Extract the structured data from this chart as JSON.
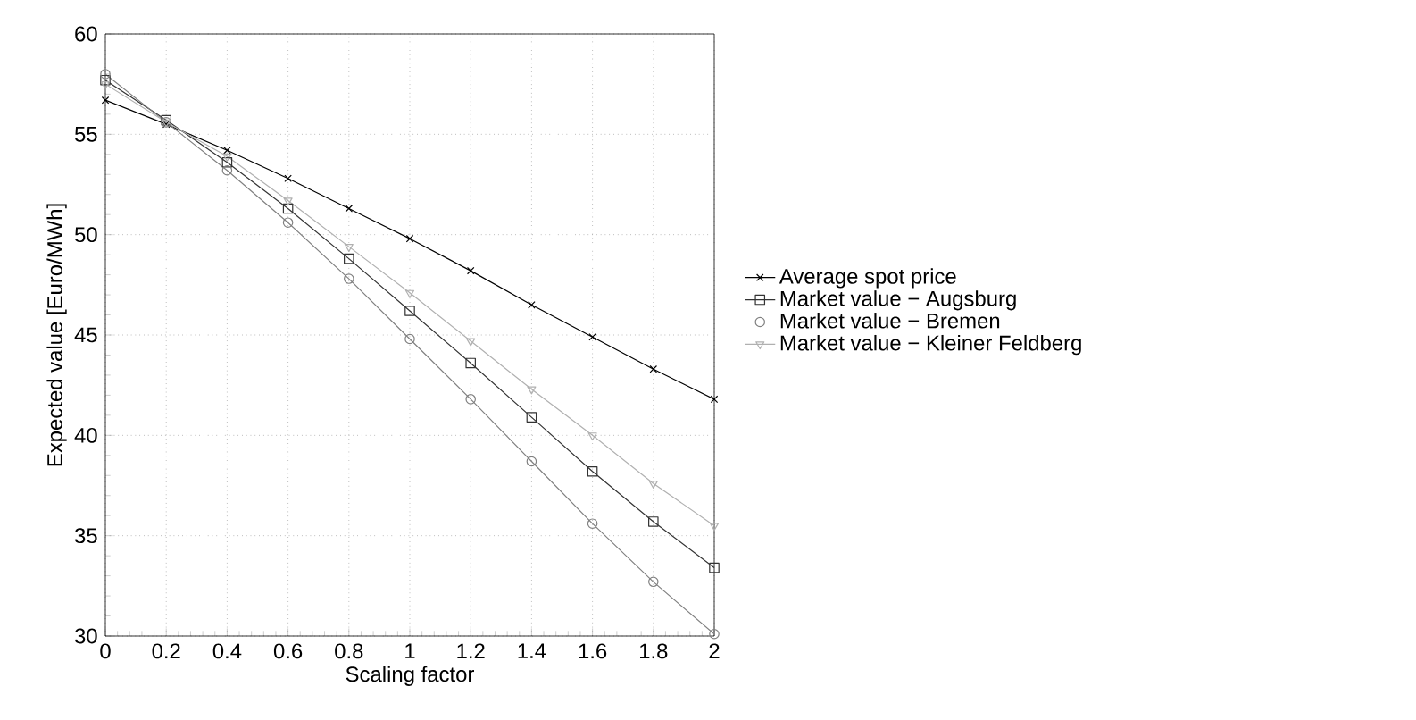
{
  "chart_data": {
    "type": "line",
    "xlabel": "Scaling factor",
    "ylabel": "Expected value [Euro/MWh]",
    "x": [
      0,
      0.2,
      0.4,
      0.6,
      0.8,
      1,
      1.2,
      1.4,
      1.6,
      1.8,
      2
    ],
    "series": [
      {
        "name": "Average spot price",
        "color": "#000000",
        "marker": "cross",
        "values": [
          56.7,
          55.5,
          54.2,
          52.8,
          51.3,
          49.8,
          48.2,
          46.5,
          44.9,
          43.3,
          41.8
        ]
      },
      {
        "name": "Market value − Augsburg",
        "color": "#333333",
        "marker": "square",
        "values": [
          57.7,
          55.7,
          53.6,
          51.3,
          48.8,
          46.2,
          43.6,
          40.9,
          38.2,
          35.7,
          33.4
        ]
      },
      {
        "name": "Market value − Bremen",
        "color": "#808080",
        "marker": "circle",
        "values": [
          58.0,
          55.6,
          53.2,
          50.6,
          47.8,
          44.8,
          41.8,
          38.7,
          35.6,
          32.7,
          30.1
        ]
      },
      {
        "name": "Market value − Kleiner Feldberg",
        "color": "#b0b0b0",
        "marker": "triangle",
        "values": [
          57.5,
          55.6,
          53.9,
          51.7,
          49.4,
          47.1,
          44.7,
          42.3,
          40.0,
          37.6,
          35.5
        ]
      }
    ],
    "xlim": [
      0,
      2
    ],
    "xticks": [
      0,
      0.2,
      0.4,
      0.6,
      0.8,
      1,
      1.2,
      1.4,
      1.6,
      1.8,
      2
    ],
    "ylim": [
      30,
      60
    ],
    "yticks": [
      30,
      35,
      40,
      45,
      50,
      55,
      60
    ],
    "grid": true,
    "legend": "right",
    "line_style": "solid"
  }
}
